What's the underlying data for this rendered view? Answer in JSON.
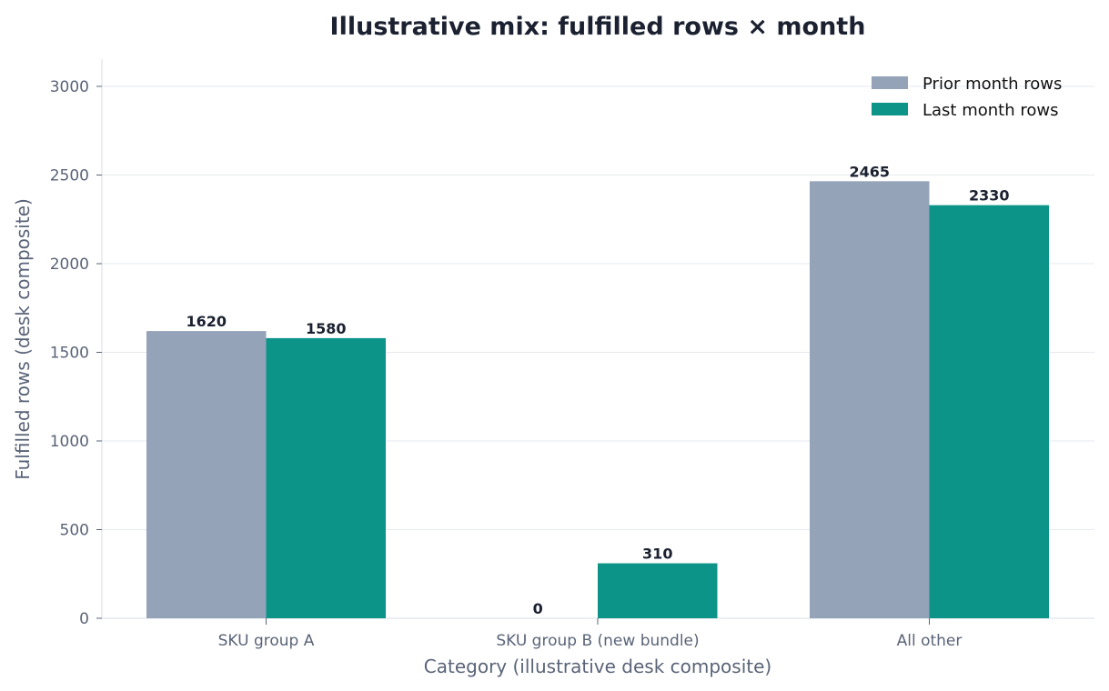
{
  "chart_data": {
    "type": "bar",
    "title": "Illustrative mix: fulfilled rows × month",
    "xlabel": "Category (illustrative desk composite)",
    "ylabel": "Fulfilled rows (desk composite)",
    "categories": [
      "SKU group A",
      "SKU group B (new bundle)",
      "All other"
    ],
    "series": [
      {
        "name": "Prior month rows",
        "values": [
          1620,
          0,
          2465
        ],
        "color": "#94a3b8"
      },
      {
        "name": "Last month rows",
        "values": [
          1580,
          310,
          2330
        ],
        "color": "#0d9488"
      }
    ],
    "ylim": [
      0,
      3150
    ],
    "yticks": [
      0,
      500,
      1000,
      1500,
      2000,
      2500,
      3000
    ],
    "grid": true,
    "legend_position": "top-right"
  }
}
